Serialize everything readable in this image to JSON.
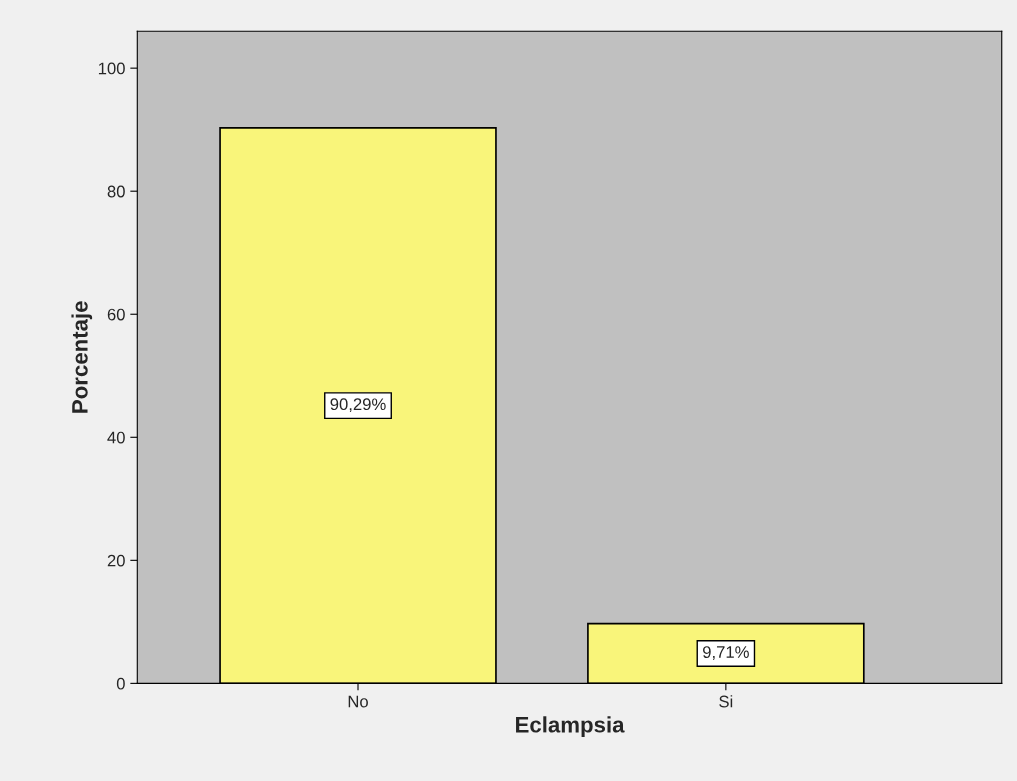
{
  "chart_data": {
    "type": "bar",
    "xlabel": "Eclampsia",
    "ylabel": "Porcentaje",
    "categories": [
      "No",
      "Si"
    ],
    "values": [
      90.29,
      9.71
    ],
    "value_labels": [
      "90,29%",
      "9,71%"
    ],
    "color": "#f9f57a",
    "ylim": [
      0,
      106
    ],
    "yticks": [
      0,
      20,
      40,
      60,
      80,
      100
    ],
    "grid": false
  }
}
